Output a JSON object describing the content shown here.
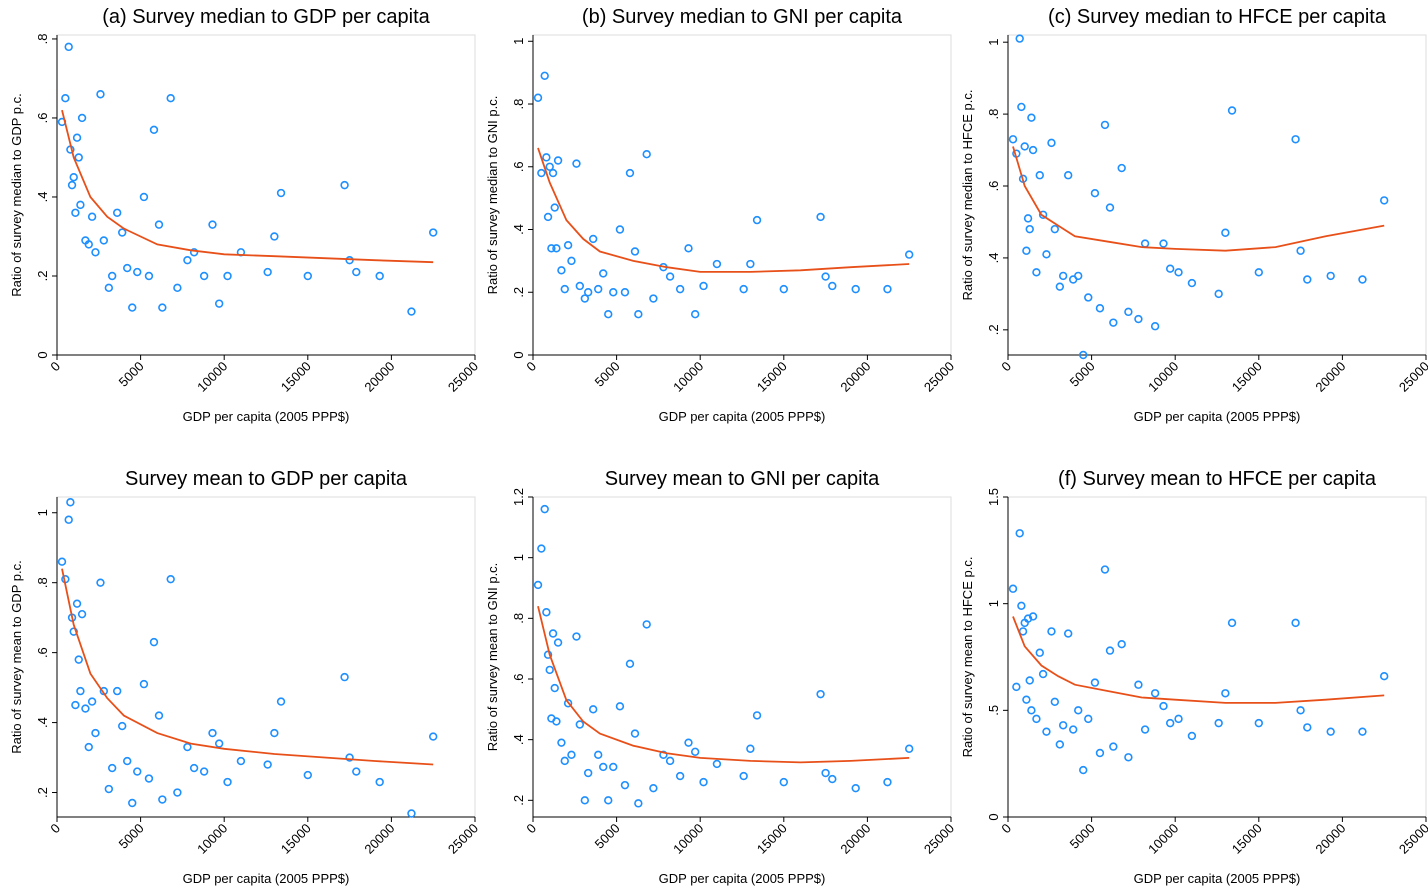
{
  "chart_data": [
    {
      "type": "scatter",
      "title": "(a) Survey median to GDP per capita",
      "x_label": "GDP per capita (2005 PPP$)",
      "y_label": "Ratio of survey median to GDP p.c.",
      "x": [
        300,
        500,
        700,
        800,
        900,
        1000,
        1100,
        1200,
        1300,
        1400,
        1500,
        1700,
        1900,
        2100,
        2300,
        2600,
        2800,
        3100,
        3300,
        3600,
        3900,
        4200,
        4500,
        4800,
        5200,
        5500,
        5800,
        6100,
        6300,
        6800,
        7200,
        7800,
        8200,
        8800,
        9300,
        9700,
        10200,
        11000,
        12600,
        13000,
        13400,
        15000,
        17200,
        17500,
        17900,
        19300,
        21200,
        22500
      ],
      "values": [
        0.59,
        0.65,
        0.78,
        0.52,
        0.43,
        0.45,
        0.36,
        0.55,
        0.5,
        0.38,
        0.6,
        0.29,
        0.28,
        0.35,
        0.26,
        0.66,
        0.29,
        0.17,
        0.2,
        0.36,
        0.31,
        0.22,
        0.12,
        0.21,
        0.4,
        0.2,
        0.57,
        0.33,
        0.12,
        0.65,
        0.17,
        0.24,
        0.26,
        0.2,
        0.33,
        0.13,
        0.2,
        0.26,
        0.21,
        0.3,
        0.41,
        0.2,
        0.43,
        0.24,
        0.21,
        0.2,
        0.11,
        0.31
      ],
      "fit_x": [
        300,
        1000,
        2000,
        3000,
        4000,
        6000,
        8000,
        10000,
        13000,
        16000,
        19000,
        22500
      ],
      "fit_values": [
        0.62,
        0.5,
        0.4,
        0.35,
        0.32,
        0.28,
        0.265,
        0.255,
        0.25,
        0.245,
        0.24,
        0.235
      ],
      "color": "#1e8fff",
      "fit_color": "#e8501a",
      "xlim": [
        0,
        25000
      ],
      "xticks": [
        0,
        5000,
        10000,
        15000,
        20000,
        25000
      ],
      "ylim": [
        0,
        0.81
      ],
      "yticks": [
        0,
        {
          "value": 0.2,
          "label": ".2"
        },
        {
          "value": 0.4,
          "label": ".4"
        },
        {
          "value": 0.6,
          "label": ".6"
        },
        {
          "value": 0.8,
          "label": ".8"
        }
      ]
    },
    {
      "type": "scatter",
      "title": "(b) Survey median to GNI per capita",
      "x_label": "GDP per capita (2005 PPP$)",
      "y_label": "Ratio of survey median to GNI p.c.",
      "x": [
        300,
        500,
        700,
        800,
        900,
        1000,
        1100,
        1200,
        1300,
        1400,
        1500,
        1700,
        1900,
        2100,
        2300,
        2600,
        2800,
        3100,
        3300,
        3600,
        3900,
        4200,
        4500,
        4800,
        5200,
        5500,
        5800,
        6100,
        6300,
        6800,
        7200,
        7800,
        8200,
        8800,
        9300,
        9700,
        10200,
        11000,
        12600,
        13000,
        13400,
        15000,
        17200,
        17500,
        17900,
        19300,
        21200,
        22500
      ],
      "values": [
        0.82,
        0.58,
        0.89,
        0.63,
        0.44,
        0.6,
        0.34,
        0.58,
        0.47,
        0.34,
        0.62,
        0.27,
        0.21,
        0.35,
        0.3,
        0.61,
        0.22,
        0.18,
        0.2,
        0.37,
        0.21,
        0.26,
        0.13,
        0.2,
        0.4,
        0.2,
        0.58,
        0.33,
        0.13,
        0.64,
        0.18,
        0.28,
        0.25,
        0.21,
        0.34,
        0.13,
        0.22,
        0.29,
        0.21,
        0.29,
        0.43,
        0.21,
        0.44,
        0.25,
        0.22,
        0.21,
        0.21,
        0.32
      ],
      "fit_x": [
        300,
        1000,
        2000,
        3000,
        4000,
        6000,
        8000,
        10000,
        13000,
        16000,
        19000,
        22500
      ],
      "fit_values": [
        0.66,
        0.55,
        0.43,
        0.37,
        0.33,
        0.3,
        0.28,
        0.265,
        0.265,
        0.27,
        0.28,
        0.29
      ],
      "color": "#1e8fff",
      "fit_color": "#e8501a",
      "xlim": [
        0,
        25000
      ],
      "xticks": [
        0,
        5000,
        10000,
        15000,
        20000,
        25000
      ],
      "ylim": [
        0,
        1.02
      ],
      "yticks": [
        0,
        {
          "value": 0.2,
          "label": ".2"
        },
        {
          "value": 0.4,
          "label": ".4"
        },
        {
          "value": 0.6,
          "label": ".6"
        },
        {
          "value": 0.8,
          "label": ".8"
        },
        1
      ]
    },
    {
      "type": "scatter",
      "title": "(c) Survey median to HFCE per capita",
      "x_label": "GDP per capita (2005 PPP$)",
      "y_label": "Ratio of survey median to HFCE p.c.",
      "x": [
        300,
        500,
        700,
        800,
        900,
        1000,
        1100,
        1200,
        1300,
        1400,
        1500,
        1700,
        1900,
        2100,
        2300,
        2600,
        2800,
        3100,
        3300,
        3600,
        3900,
        4200,
        4500,
        4800,
        5200,
        5500,
        5800,
        6100,
        6300,
        6800,
        7200,
        7800,
        8200,
        8800,
        9300,
        9700,
        10200,
        11000,
        12600,
        13000,
        13400,
        15000,
        17200,
        17500,
        17900,
        19300,
        21200,
        22500
      ],
      "values": [
        0.73,
        0.69,
        1.01,
        0.82,
        0.62,
        0.71,
        0.42,
        0.51,
        0.48,
        0.79,
        0.7,
        0.36,
        0.63,
        0.52,
        0.41,
        0.72,
        0.48,
        0.32,
        0.35,
        0.63,
        0.34,
        0.35,
        0.13,
        0.29,
        0.58,
        0.26,
        0.77,
        0.54,
        0.22,
        0.65,
        0.25,
        0.23,
        0.44,
        0.21,
        0.44,
        0.37,
        0.36,
        0.33,
        0.3,
        0.47,
        0.81,
        0.36,
        0.73,
        0.42,
        0.34,
        0.35,
        0.34,
        0.56
      ],
      "fit_x": [
        300,
        1000,
        2000,
        3000,
        4000,
        6000,
        8000,
        10000,
        13000,
        16000,
        19000,
        22500
      ],
      "fit_values": [
        0.71,
        0.6,
        0.52,
        0.49,
        0.46,
        0.445,
        0.43,
        0.425,
        0.42,
        0.43,
        0.46,
        0.49
      ],
      "color": "#1e8fff",
      "fit_color": "#e8501a",
      "xlim": [
        0,
        25000
      ],
      "xticks": [
        0,
        5000,
        10000,
        15000,
        20000,
        25000
      ],
      "ylim": [
        0.13,
        1.02
      ],
      "yticks": [
        {
          "value": 0.2,
          "label": ".2"
        },
        {
          "value": 0.4,
          "label": ".4"
        },
        {
          "value": 0.6,
          "label": ".6"
        },
        {
          "value": 0.8,
          "label": ".8"
        },
        1
      ]
    },
    {
      "type": "scatter",
      "title": "Survey mean to GDP per capita",
      "x_label": "GDP per capita (2005 PPP$)",
      "y_label": "Ratio of survey mean to GDP p.c.",
      "x": [
        300,
        500,
        700,
        800,
        900,
        1000,
        1100,
        1200,
        1300,
        1400,
        1500,
        1700,
        1900,
        2100,
        2300,
        2600,
        2800,
        3100,
        3300,
        3600,
        3900,
        4200,
        4500,
        4800,
        5200,
        5500,
        5800,
        6100,
        6300,
        6800,
        7200,
        7800,
        8200,
        8800,
        9300,
        9700,
        10200,
        11000,
        12600,
        13000,
        13400,
        15000,
        17200,
        17500,
        17900,
        19300,
        21200,
        22500
      ],
      "values": [
        0.86,
        0.81,
        0.98,
        1.03,
        0.7,
        0.66,
        0.45,
        0.74,
        0.58,
        0.49,
        0.71,
        0.44,
        0.33,
        0.46,
        0.37,
        0.8,
        0.49,
        0.21,
        0.27,
        0.49,
        0.39,
        0.29,
        0.17,
        0.26,
        0.51,
        0.24,
        0.63,
        0.42,
        0.18,
        0.81,
        0.2,
        0.33,
        0.27,
        0.26,
        0.37,
        0.34,
        0.23,
        0.29,
        0.28,
        0.37,
        0.46,
        0.25,
        0.53,
        0.3,
        0.26,
        0.23,
        0.14,
        0.36
      ],
      "fit_x": [
        300,
        1000,
        2000,
        3000,
        4000,
        6000,
        8000,
        10000,
        13000,
        16000,
        19000,
        22500
      ],
      "fit_values": [
        0.84,
        0.68,
        0.54,
        0.47,
        0.42,
        0.37,
        0.34,
        0.325,
        0.31,
        0.3,
        0.29,
        0.28
      ],
      "color": "#1e8fff",
      "fit_color": "#e8501a",
      "xlim": [
        0,
        25000
      ],
      "xticks": [
        0,
        5000,
        10000,
        15000,
        20000,
        25000
      ],
      "ylim": [
        0.13,
        1.045
      ],
      "yticks": [
        {
          "value": 0.2,
          "label": ".2"
        },
        {
          "value": 0.4,
          "label": ".4"
        },
        {
          "value": 0.6,
          "label": ".6"
        },
        {
          "value": 0.8,
          "label": ".8"
        },
        1
      ]
    },
    {
      "type": "scatter",
      "title": "Survey mean to GNI per capita",
      "x_label": "GDP per capita (2005 PPP$)",
      "y_label": "Ratio of survey mean to GNI p.c.",
      "x": [
        300,
        500,
        700,
        800,
        900,
        1000,
        1100,
        1200,
        1300,
        1400,
        1500,
        1700,
        1900,
        2100,
        2300,
        2600,
        2800,
        3100,
        3300,
        3600,
        3900,
        4200,
        4500,
        4800,
        5200,
        5500,
        5800,
        6100,
        6300,
        6800,
        7200,
        7800,
        8200,
        8800,
        9300,
        9700,
        10200,
        11000,
        12600,
        13000,
        13400,
        15000,
        17200,
        17500,
        17900,
        19300,
        21200,
        22500
      ],
      "values": [
        0.91,
        1.03,
        1.16,
        0.82,
        0.68,
        0.63,
        0.47,
        0.75,
        0.57,
        0.46,
        0.72,
        0.39,
        0.33,
        0.52,
        0.35,
        0.74,
        0.45,
        0.2,
        0.29,
        0.5,
        0.35,
        0.31,
        0.2,
        0.31,
        0.51,
        0.25,
        0.65,
        0.42,
        0.19,
        0.78,
        0.24,
        0.35,
        0.33,
        0.28,
        0.39,
        0.36,
        0.26,
        0.32,
        0.28,
        0.37,
        0.48,
        0.26,
        0.55,
        0.29,
        0.27,
        0.24,
        0.26,
        0.37
      ],
      "fit_x": [
        300,
        1000,
        2000,
        3000,
        4000,
        6000,
        8000,
        10000,
        13000,
        16000,
        19000,
        22500
      ],
      "fit_values": [
        0.84,
        0.68,
        0.53,
        0.46,
        0.42,
        0.38,
        0.355,
        0.34,
        0.33,
        0.325,
        0.33,
        0.34
      ],
      "color": "#1e8fff",
      "fit_color": "#e8501a",
      "xlim": [
        0,
        25000
      ],
      "xticks": [
        0,
        5000,
        10000,
        15000,
        20000,
        25000
      ],
      "ylim": [
        0.145,
        1.2
      ],
      "yticks": [
        {
          "value": 0.2,
          "label": ".2"
        },
        {
          "value": 0.4,
          "label": ".4"
        },
        {
          "value": 0.6,
          "label": ".6"
        },
        {
          "value": 0.8,
          "label": ".8"
        },
        1,
        1.2
      ]
    },
    {
      "type": "scatter",
      "title": "(f) Survey mean to HFCE per capita",
      "x_label": "GDP per capita (2005 PPP$)",
      "y_label": "Ratio of survey mean to HFCE p.c.",
      "x": [
        300,
        500,
        700,
        800,
        900,
        1000,
        1100,
        1200,
        1300,
        1400,
        1500,
        1700,
        1900,
        2100,
        2300,
        2600,
        2800,
        3100,
        3300,
        3600,
        3900,
        4200,
        4500,
        4800,
        5200,
        5500,
        5800,
        6100,
        6300,
        6800,
        7200,
        7800,
        8200,
        8800,
        9300,
        9700,
        10200,
        11000,
        12600,
        13000,
        13400,
        15000,
        17200,
        17500,
        17900,
        19300,
        21200,
        22500
      ],
      "values": [
        1.07,
        0.61,
        1.33,
        0.99,
        0.87,
        0.91,
        0.55,
        0.93,
        0.64,
        0.5,
        0.94,
        0.46,
        0.77,
        0.67,
        0.4,
        0.87,
        0.54,
        0.34,
        0.43,
        0.86,
        0.41,
        0.5,
        0.22,
        0.46,
        0.63,
        0.3,
        1.16,
        0.78,
        0.33,
        0.81,
        0.28,
        0.62,
        0.41,
        0.58,
        0.52,
        0.44,
        0.46,
        0.38,
        0.44,
        0.58,
        0.91,
        0.44,
        0.91,
        0.5,
        0.42,
        0.4,
        0.4,
        0.66
      ],
      "fit_x": [
        300,
        1000,
        2000,
        3000,
        4000,
        6000,
        8000,
        10000,
        13000,
        16000,
        19000,
        22500
      ],
      "fit_values": [
        0.94,
        0.8,
        0.71,
        0.66,
        0.62,
        0.59,
        0.56,
        0.55,
        0.535,
        0.535,
        0.55,
        0.57
      ],
      "color": "#1e8fff",
      "fit_color": "#e8501a",
      "xlim": [
        0,
        25000
      ],
      "xticks": [
        0,
        5000,
        10000,
        15000,
        20000,
        25000
      ],
      "ylim": [
        0,
        1.5
      ],
      "yticks": [
        0,
        {
          "value": 0.5,
          "label": ".5"
        },
        1,
        1.5
      ]
    }
  ]
}
